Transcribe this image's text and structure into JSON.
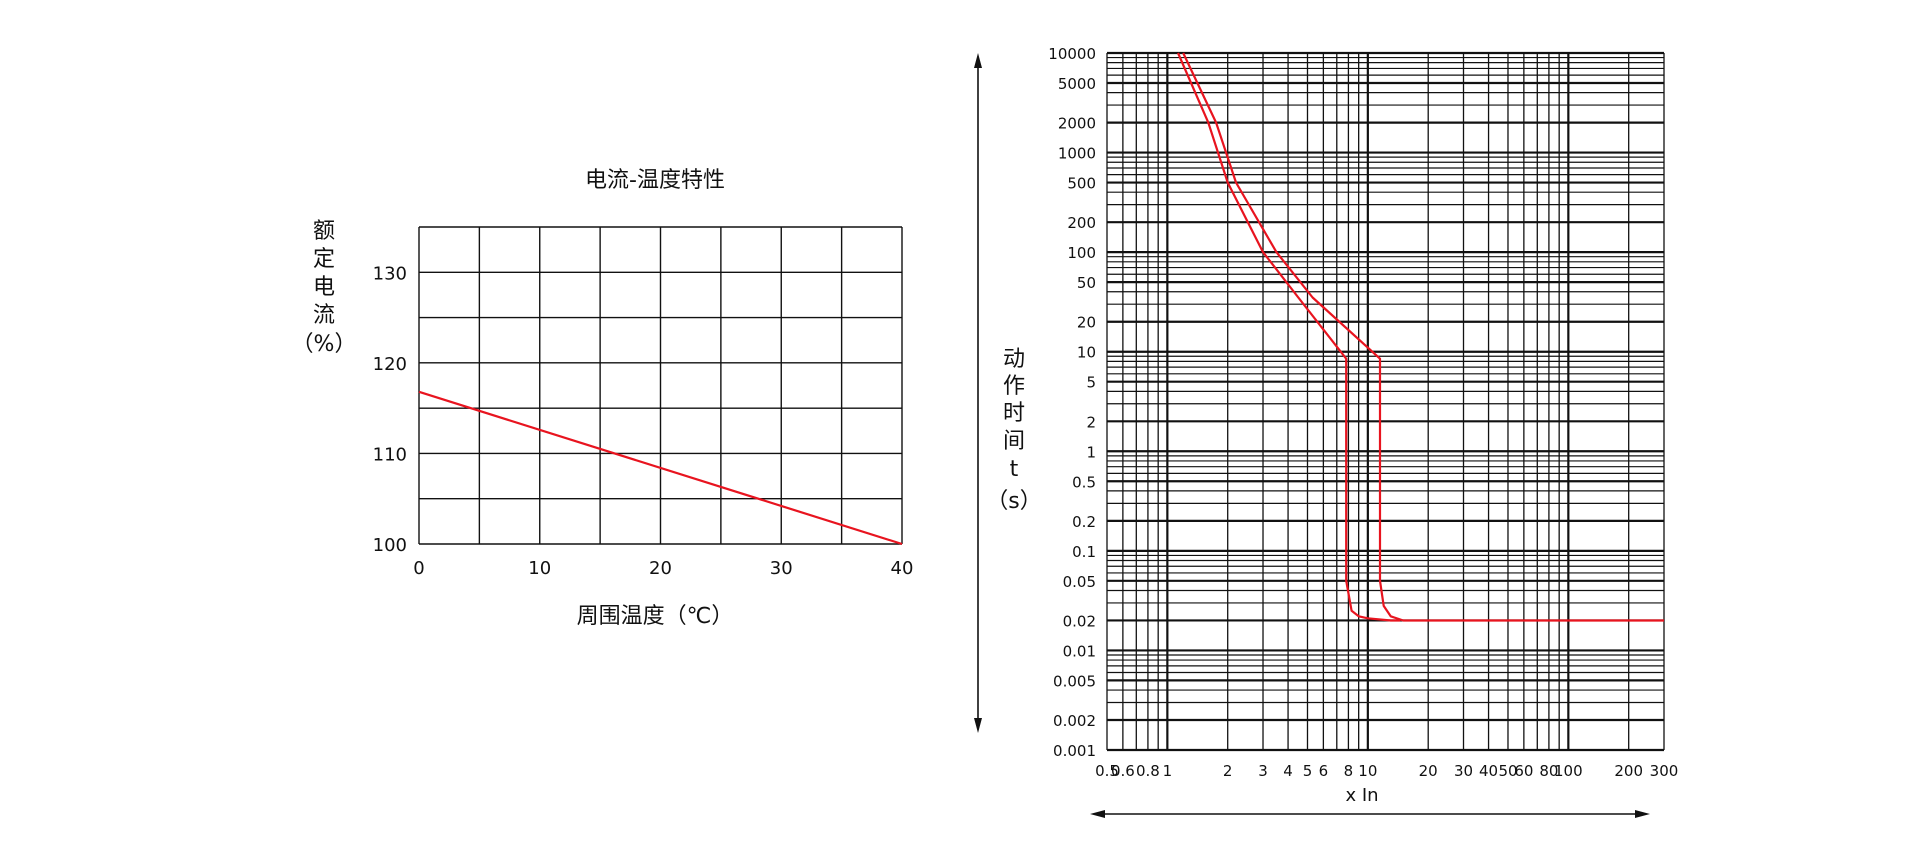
{
  "chart_data": [
    {
      "type": "line",
      "title": "电流-温度特性",
      "xlabel": "周围温度（℃）",
      "ylabel_chars": [
        "额",
        "定",
        "电",
        "流",
        "（%）"
      ],
      "xlim": [
        0,
        40
      ],
      "ylim": [
        100,
        135
      ],
      "x_ticks": [
        0,
        10,
        20,
        30,
        40
      ],
      "y_ticks": [
        100,
        110,
        120,
        130
      ],
      "grid": true,
      "series": [
        {
          "x": [
            0,
            40
          ],
          "y": [
            116.8,
            100
          ]
        }
      ],
      "colors": {
        "curve": "#e8141f",
        "grid": "#111111"
      }
    },
    {
      "type": "line",
      "y_scale": "log",
      "x_scale": "log",
      "xlabel": "x In",
      "ylabel_chars": [
        "动",
        "作",
        "时",
        "间",
        "t",
        "（s）"
      ],
      "xlim": [
        0.5,
        300
      ],
      "ylim": [
        0.001,
        10000
      ],
      "x_tick_labels": [
        "0.5",
        "0.6",
        "0.8",
        "1",
        "2",
        "3",
        "4",
        "5",
        "6",
        "8",
        "10",
        "20",
        "30",
        "40",
        "50",
        "60",
        "80",
        "100",
        "200",
        "300"
      ],
      "x_tick_values": [
        0.5,
        0.6,
        0.8,
        1,
        2,
        3,
        4,
        5,
        6,
        8,
        10,
        20,
        30,
        40,
        50,
        60,
        80,
        100,
        200,
        300
      ],
      "y_tick_labels": [
        "10000",
        "5000",
        "2000",
        "1000",
        "500",
        "200",
        "100",
        "50",
        "20",
        "10",
        "5",
        "2",
        "1",
        "0.5",
        "0.2",
        "0.1",
        "0.05",
        "0.02",
        "0.01",
        "0.005",
        "0.002",
        "0.001"
      ],
      "y_tick_values": [
        10000,
        5000,
        2000,
        1000,
        500,
        200,
        100,
        50,
        20,
        10,
        5,
        2,
        1,
        0.5,
        0.2,
        0.1,
        0.05,
        0.02,
        0.01,
        0.005,
        0.002,
        0.001
      ],
      "grid": true,
      "series": [
        {
          "x": [
            1.13,
            1.6,
            2.0,
            3.0,
            4.5,
            7.8,
            7.8,
            8.3,
            9.0,
            10.0,
            13.0,
            14.5
          ],
          "y": [
            10000,
            2000,
            500,
            100,
            35,
            8.5,
            0.05,
            0.025,
            0.022,
            0.021,
            0.02,
            0.02
          ]
        },
        {
          "x": [
            1.2,
            1.75,
            2.2,
            3.5,
            5.3,
            11.5,
            11.5,
            12.0,
            13.0,
            15.0,
            300
          ],
          "y": [
            10000,
            2000,
            500,
            100,
            35,
            8.5,
            0.05,
            0.028,
            0.022,
            0.02,
            0.02
          ]
        }
      ],
      "colors": {
        "curve": "#e8141f",
        "grid": "#111111"
      }
    }
  ]
}
